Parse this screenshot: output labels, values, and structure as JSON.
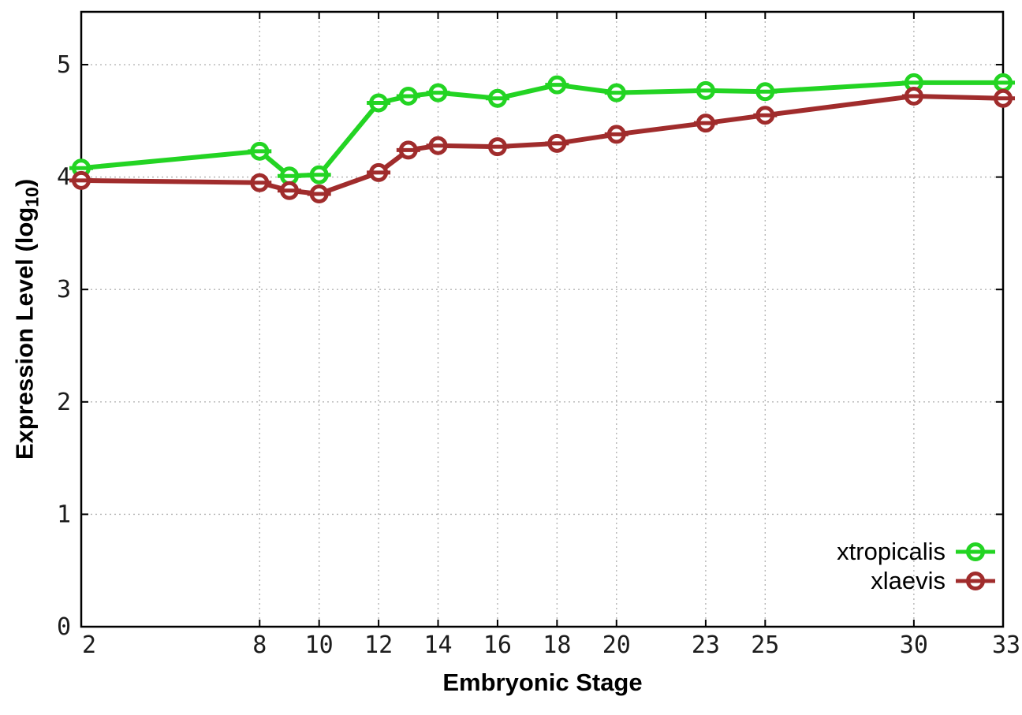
{
  "chart_data": {
    "type": "line",
    "title": "",
    "xlabel": "Embryonic Stage",
    "ylabel": "Expression Level (log10)",
    "ylabel_parts": {
      "main": "Expression Level (log",
      "sub": "10",
      "close": ")"
    },
    "x": [
      2,
      8,
      9,
      10,
      12,
      13,
      14,
      16,
      18,
      20,
      23,
      25,
      30,
      33
    ],
    "x_ticks": [
      2,
      8,
      10,
      12,
      14,
      16,
      18,
      20,
      23,
      25,
      30,
      33
    ],
    "y_ticks": [
      0,
      1,
      2,
      3,
      4,
      5
    ],
    "xlim": [
      2,
      33
    ],
    "ylim": [
      0,
      5.47
    ],
    "grid": true,
    "legend_position": "right-center",
    "series": [
      {
        "name": "xtropicalis",
        "color": "#23d423",
        "values": [
          4.08,
          4.23,
          4.01,
          4.02,
          4.66,
          4.72,
          4.75,
          4.7,
          4.82,
          4.75,
          4.77,
          4.76,
          4.84,
          4.84
        ]
      },
      {
        "name": "xlaevis",
        "color": "#a02c2c",
        "values": [
          3.97,
          3.95,
          3.88,
          3.85,
          4.04,
          4.24,
          4.28,
          4.27,
          4.3,
          4.38,
          4.48,
          4.55,
          4.72,
          4.7
        ]
      }
    ]
  },
  "styles": {
    "grid_color": "#b5b5b5",
    "axis_color": "#000000",
    "tick_label_color": "#1c1c1c",
    "background": "#ffffff"
  }
}
